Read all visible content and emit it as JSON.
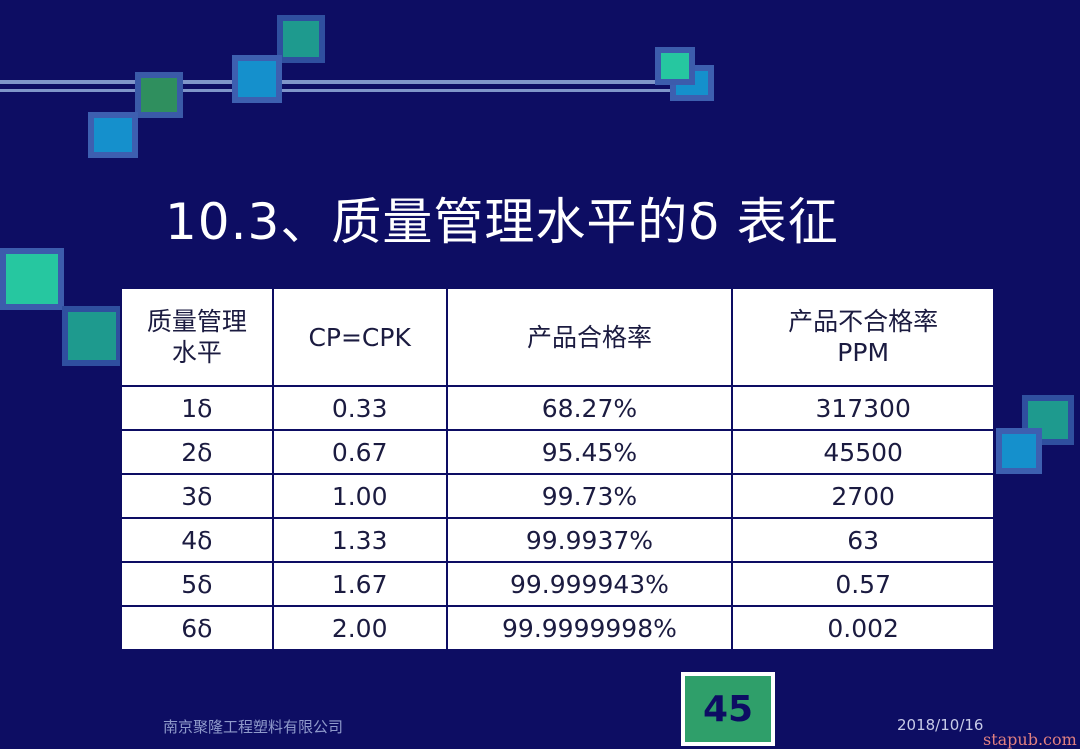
{
  "title": "10.3、质量管理水平的δ 表征",
  "table": {
    "headers": {
      "level_line1": "质量管理",
      "level_line2": "水平",
      "cp": "CP=CPK",
      "yield": "产品合格率",
      "ppm_line1": "产品不合格率",
      "ppm_line2": "PPM"
    },
    "rows": [
      {
        "level": "1δ",
        "cp": "0.33",
        "yield": "68.27%",
        "ppm": "317300"
      },
      {
        "level": "2δ",
        "cp": "0.67",
        "yield": "95.45%",
        "ppm": "45500"
      },
      {
        "level": "3δ",
        "cp": "1.00",
        "yield": "99.73%",
        "ppm": "2700"
      },
      {
        "level": "4δ",
        "cp": "1.33",
        "yield": "99.9937%",
        "ppm": "63"
      },
      {
        "level": "5δ",
        "cp": "1.67",
        "yield": "99.999943%",
        "ppm": "0.57"
      },
      {
        "level": "6δ",
        "cp": "2.00",
        "yield": "99.9999998%",
        "ppm": "0.002"
      }
    ]
  },
  "footer": {
    "company": "南京聚隆工程塑料有限公司",
    "page_number": "45",
    "date": "2018/10/16"
  },
  "watermark": "stapub.com",
  "colors": {
    "background": "#0d0d63",
    "table_background": "#ffffff",
    "page_box": "#2f9f6a"
  }
}
